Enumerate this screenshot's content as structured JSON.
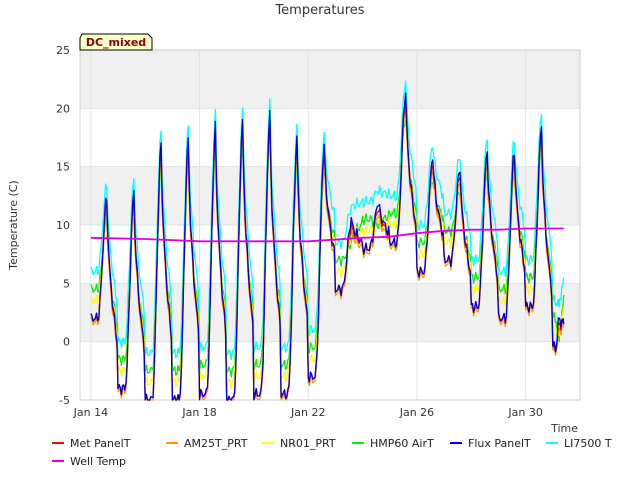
{
  "chart_data": {
    "type": "line",
    "title": "Temperatures",
    "xlabel": "Time",
    "ylabel": "Temperature (C)",
    "badge": "DC_mixed",
    "xlim_days": [
      13.6,
      32.0
    ],
    "ylim": [
      -5,
      25
    ],
    "yticks": [
      -5,
      0,
      5,
      10,
      15,
      20,
      25
    ],
    "xticks": [
      {
        "day": 14,
        "label": "Jan 14"
      },
      {
        "day": 18,
        "label": "Jan 18"
      },
      {
        "day": 22,
        "label": "Jan 22"
      },
      {
        "day": 26,
        "label": "Jan 26"
      },
      {
        "day": 30,
        "label": "Jan 30"
      }
    ],
    "grid": true,
    "legend_position": "bottom",
    "day_min_max": [
      {
        "day": 14,
        "min": 2.0,
        "max": 2.0
      },
      {
        "day": 15,
        "min": -4.0,
        "max": 12.0
      },
      {
        "day": 16,
        "min": -5.0,
        "max": 12.5
      },
      {
        "day": 17,
        "min": -5.0,
        "max": 16.5
      },
      {
        "day": 18,
        "min": -4.5,
        "max": 17.0
      },
      {
        "day": 19,
        "min": -5.0,
        "max": 18.0
      },
      {
        "day": 20,
        "min": -4.5,
        "max": 18.5
      },
      {
        "day": 21,
        "min": -4.5,
        "max": 19.0
      },
      {
        "day": 22,
        "min": -3.0,
        "max": 17.0
      },
      {
        "day": 23,
        "min": 4.5,
        "max": 16.5
      },
      {
        "day": 24,
        "min": 8.0,
        "max": 10.0
      },
      {
        "day": 25,
        "min": 8.5,
        "max": 11.5
      },
      {
        "day": 26,
        "min": 6.0,
        "max": 21.0
      },
      {
        "day": 27,
        "min": 7.0,
        "max": 15.5
      },
      {
        "day": 28,
        "min": 3.0,
        "max": 14.5
      },
      {
        "day": 29,
        "min": 2.0,
        "max": 16.0
      },
      {
        "day": 30,
        "min": 3.0,
        "max": 16.0
      },
      {
        "day": 31,
        "min": -0.5,
        "max": 18.0
      },
      {
        "day": 31.4,
        "min": 1.5,
        "max": 1.5
      }
    ],
    "series": [
      {
        "name": "Met PanelT",
        "color": "#ff0000",
        "offset_min": 0.0,
        "offset_max": 0.0,
        "dash": false
      },
      {
        "name": "AM25T_PRT",
        "color": "#ff9900",
        "offset_min": -0.3,
        "offset_max": -0.5,
        "dash": false
      },
      {
        "name": "NR01_PRT",
        "color": "#ffff00",
        "offset_min": 1.5,
        "offset_max": -1.0,
        "dash": false
      },
      {
        "name": "HMP60 AirT",
        "color": "#00ee00",
        "offset_min": 2.5,
        "offset_max": -1.5,
        "dash": false
      },
      {
        "name": "Flux PanelT",
        "color": "#0000cc",
        "offset_min": 0.0,
        "offset_max": 0.5,
        "dash": false
      },
      {
        "name": "LI7500 T",
        "color": "#00ffff",
        "offset_min": 4.0,
        "offset_max": 1.5,
        "dash": false
      },
      {
        "name": "Well Temp",
        "color": "#dd00dd",
        "dash": false,
        "points": [
          [
            14,
            8.9
          ],
          [
            16,
            8.8
          ],
          [
            18,
            8.6
          ],
          [
            20,
            8.6
          ],
          [
            22,
            8.6
          ],
          [
            24,
            8.9
          ],
          [
            25,
            9.0
          ],
          [
            26,
            9.3
          ],
          [
            27,
            9.5
          ],
          [
            28,
            9.6
          ],
          [
            29,
            9.6
          ],
          [
            30,
            9.7
          ],
          [
            31,
            9.7
          ],
          [
            31.4,
            9.7
          ]
        ]
      }
    ]
  }
}
